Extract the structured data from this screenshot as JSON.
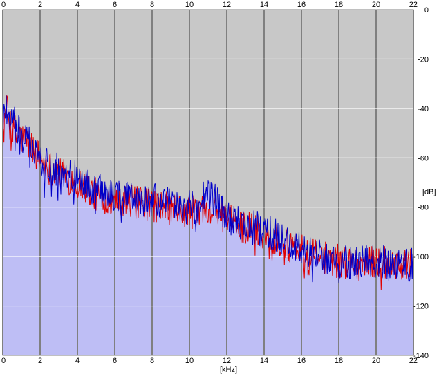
{
  "chart_data": {
    "type": "area",
    "xlabel": "[kHz]",
    "ylabel": "[dB]",
    "xlim": [
      0,
      22
    ],
    "ylim": [
      -140,
      0
    ],
    "x_ticks": [
      "0",
      "2",
      "4",
      "6",
      "8",
      "10",
      "12",
      "14",
      "16",
      "18",
      "20",
      "22"
    ],
    "y_ticks": [
      "0",
      "-20",
      "-40",
      "-60",
      "-80",
      "-100",
      "-120",
      "-140"
    ],
    "x_tick_values": [
      0,
      2,
      4,
      6,
      8,
      10,
      12,
      14,
      16,
      18,
      20,
      22
    ],
    "y_tick_values": [
      0,
      -20,
      -40,
      -60,
      -80,
      -100,
      -120,
      -140
    ],
    "grid": true,
    "colors": {
      "background": "#c8c8c8",
      "grid": "#808080",
      "fill": "#bebef5",
      "series_red": "#e00000",
      "series_blue": "#0000c8"
    },
    "series": [
      {
        "color": "red",
        "x": [
          0,
          0.1,
          0.3,
          0.5,
          1.0,
          1.5,
          2.0,
          2.5,
          3.0,
          3.5,
          4.0,
          4.5,
          5.0,
          5.5,
          6.0,
          6.5,
          7.0,
          7.5,
          8.0,
          8.5,
          9.0,
          9.5,
          10.0,
          10.5,
          11.0,
          11.5,
          12.0,
          12.5,
          13.0,
          13.5,
          14.0,
          14.5,
          15.0,
          15.5,
          16.0,
          16.5,
          17.0,
          17.5,
          18.0,
          18.5,
          19.0,
          19.5,
          20.0,
          20.5,
          21.0,
          21.5,
          22.0
        ],
        "y": [
          -55,
          -42,
          -44,
          -50,
          -52,
          -55,
          -60,
          -64,
          -66,
          -68,
          -70,
          -72,
          -75,
          -76,
          -76,
          -77,
          -78,
          -79,
          -79,
          -80,
          -81,
          -82,
          -82,
          -82,
          -79,
          -81,
          -85,
          -87,
          -88,
          -89,
          -90,
          -92,
          -94,
          -96,
          -98,
          -99,
          -100,
          -101,
          -102,
          -102,
          -103,
          -103,
          -102,
          -102,
          -102,
          -103,
          -103
        ]
      },
      {
        "color": "blue",
        "x": [
          0,
          0.1,
          0.3,
          0.5,
          1.0,
          1.5,
          2.0,
          2.5,
          3.0,
          3.5,
          4.0,
          4.5,
          5.0,
          5.5,
          6.0,
          6.5,
          7.0,
          7.5,
          8.0,
          8.5,
          9.0,
          9.5,
          10.0,
          10.5,
          11.0,
          11.5,
          12.0,
          12.5,
          13.0,
          13.5,
          14.0,
          14.5,
          15.0,
          15.5,
          16.0,
          16.5,
          17.0,
          17.5,
          18.0,
          18.5,
          19.0,
          19.5,
          20.0,
          20.5,
          21.0,
          21.5,
          22.0
        ],
        "y": [
          -52,
          -38,
          -40,
          -46,
          -52,
          -54,
          -61,
          -63,
          -65,
          -66,
          -68,
          -71,
          -73,
          -74,
          -75,
          -76,
          -76,
          -78,
          -77,
          -78,
          -79,
          -80,
          -80,
          -80,
          -73,
          -79,
          -84,
          -86,
          -87,
          -88,
          -89,
          -91,
          -93,
          -95,
          -97,
          -98,
          -100,
          -101,
          -102,
          -102,
          -103,
          -102,
          -102,
          -102,
          -102,
          -103,
          -103
        ]
      }
    ]
  }
}
